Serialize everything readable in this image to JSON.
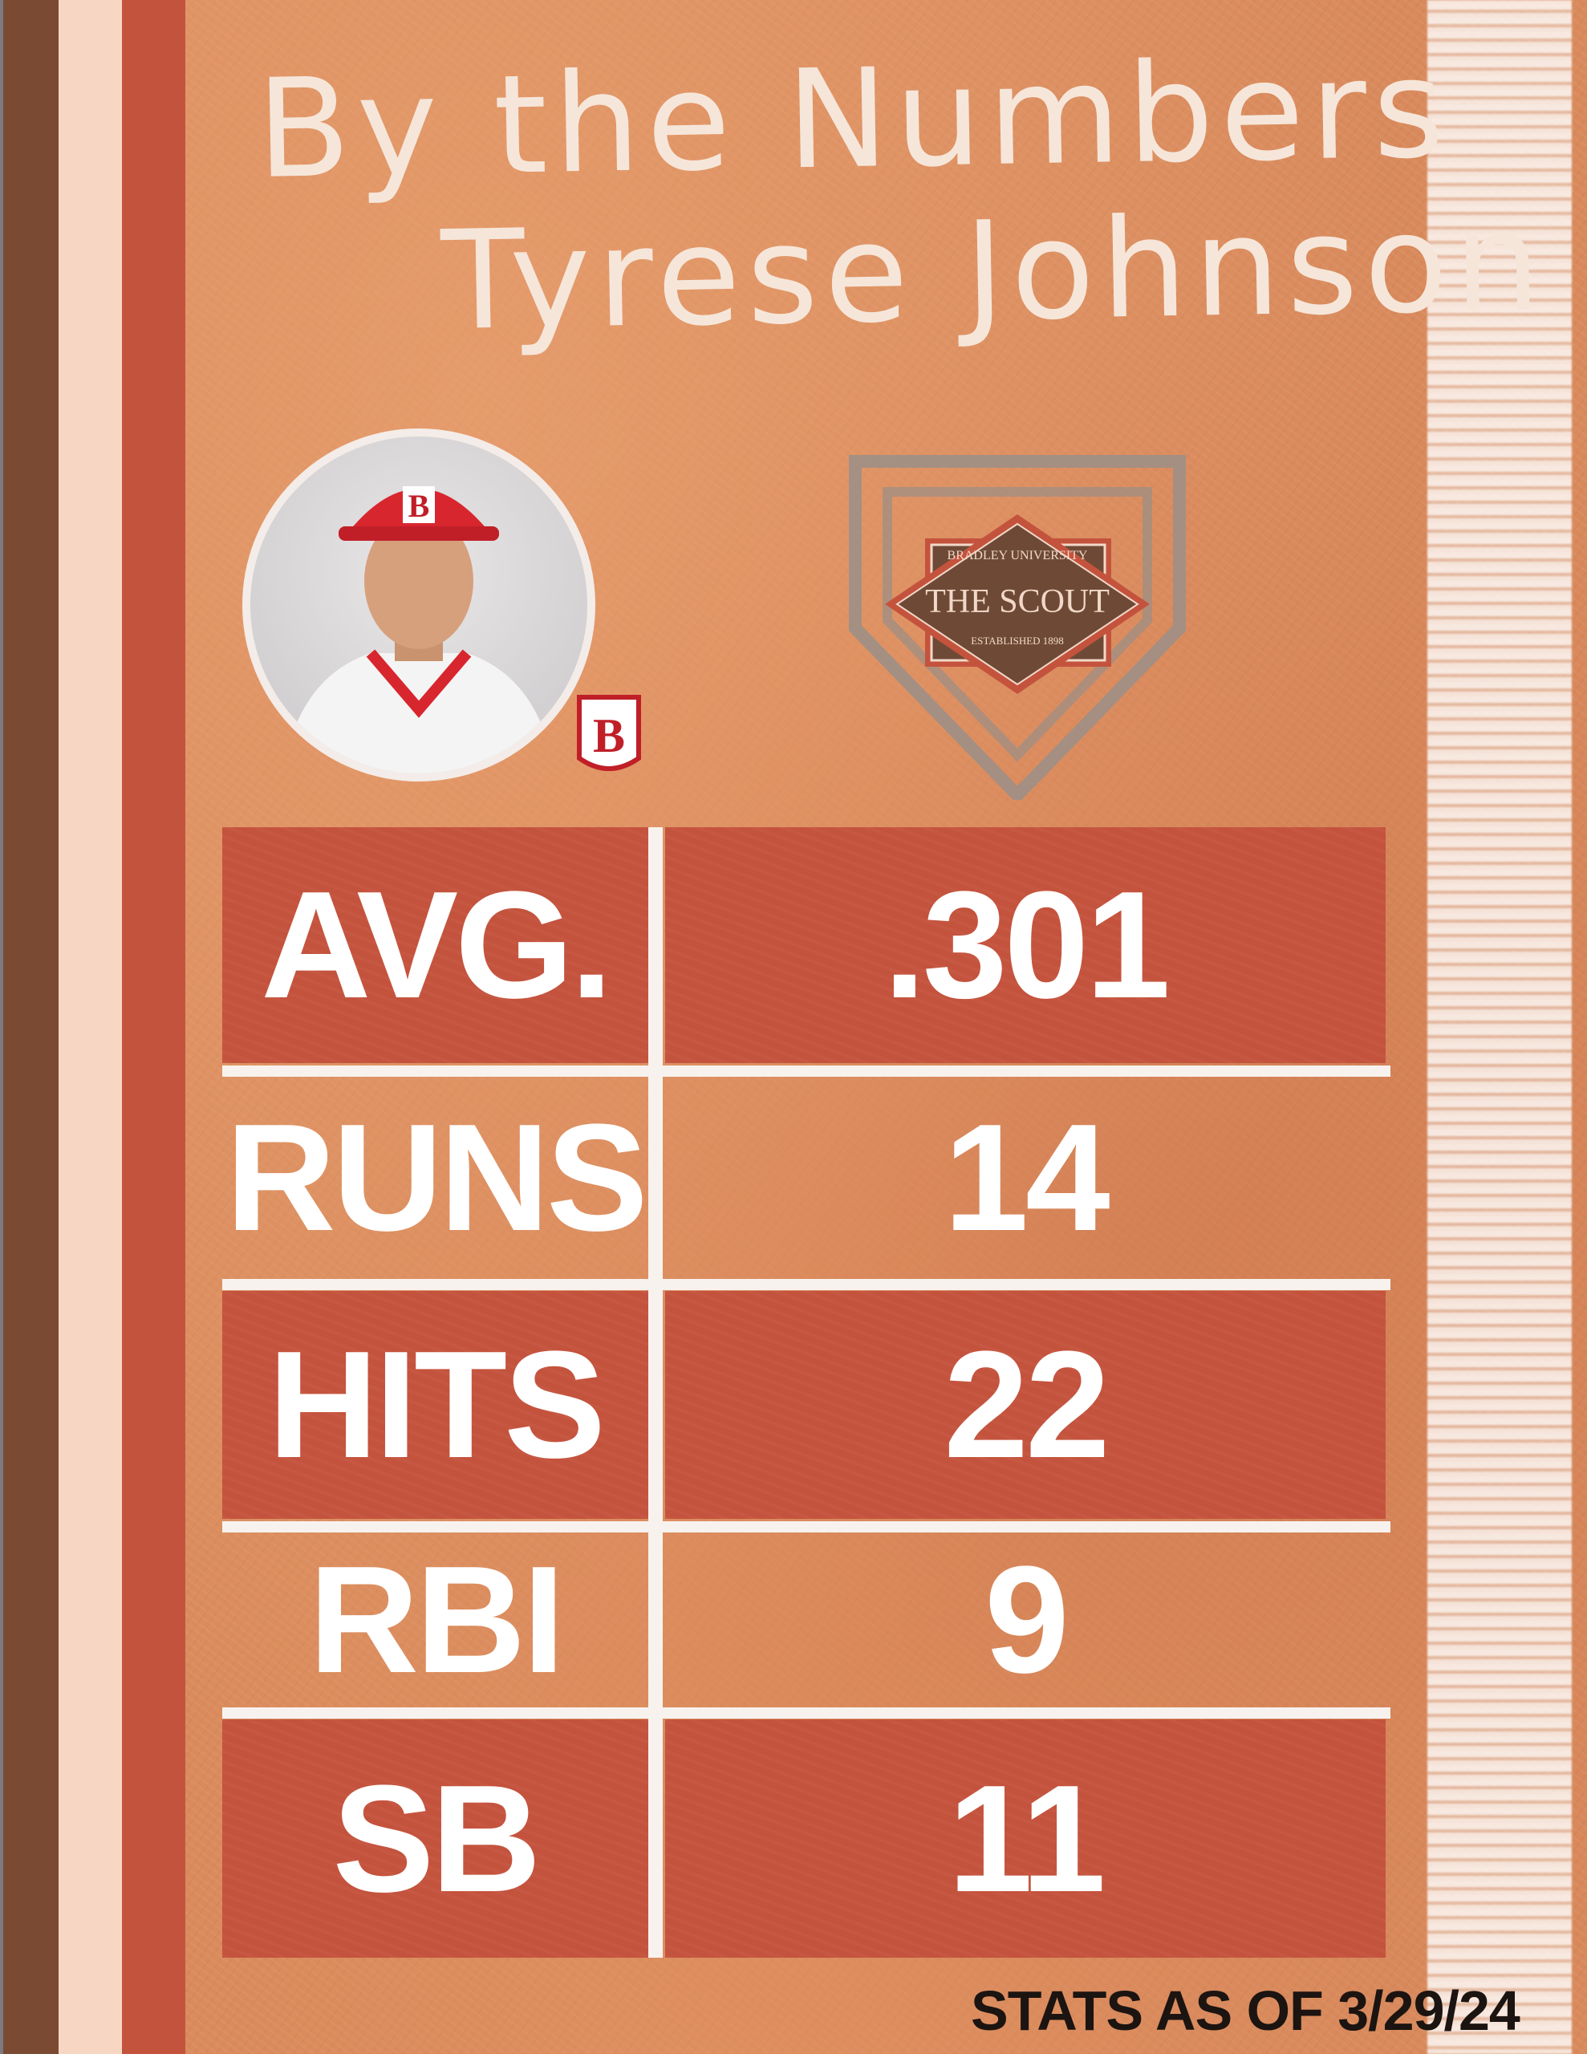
{
  "header": {
    "title": "By the Numbers",
    "player_name": "Tyrese Johnson"
  },
  "logo": {
    "university": "BRADLEY UNIVERSITY",
    "name": "THE SCOUT",
    "established": "ESTABLISHED 1898"
  },
  "team_badge": "B",
  "stats": [
    {
      "label": "AVG.",
      "value": ".301"
    },
    {
      "label": "RUNS",
      "value": "14"
    },
    {
      "label": "HITS",
      "value": "22"
    },
    {
      "label": "RBI",
      "value": "9"
    },
    {
      "label": "SB",
      "value": "11"
    }
  ],
  "footer": {
    "note": "STATS AS OF 3/29/24"
  },
  "colors": {
    "stripe_brown": "#7a4a33",
    "stripe_cream": "#f7d7c4",
    "stripe_red": "#c4533d",
    "dirt": "#d98a5c",
    "logo_brown": "#6e4a36"
  }
}
